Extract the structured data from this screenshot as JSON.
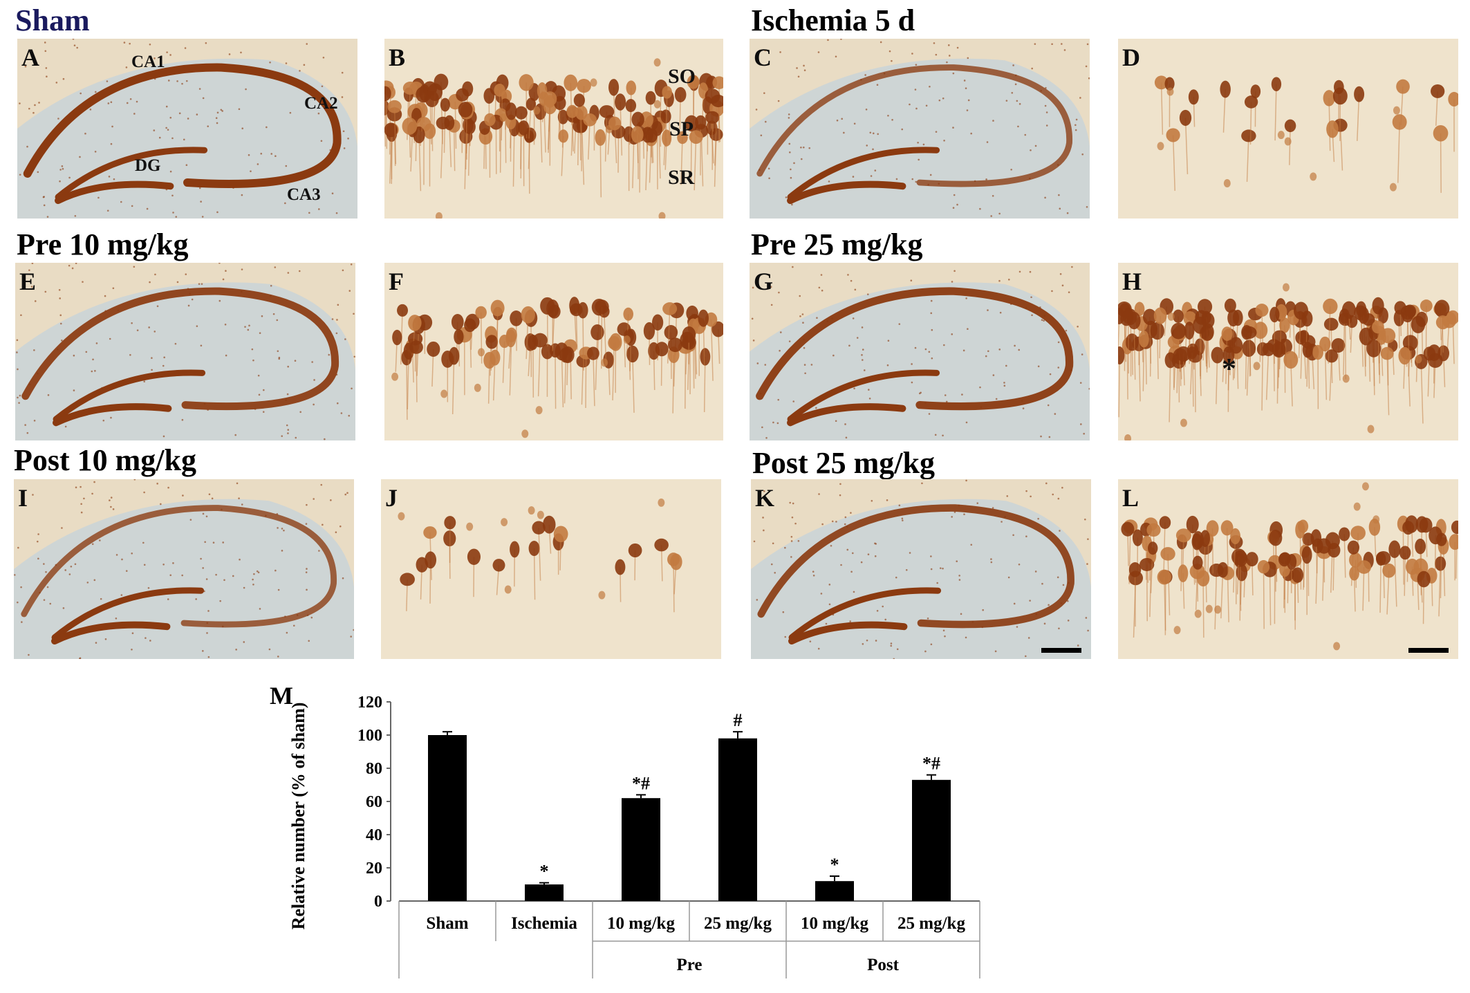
{
  "figure": {
    "titles": {
      "sham": "Sham",
      "ischemia": "Ischemia 5 d",
      "pre10": "Pre 10 mg/kg",
      "pre25": "Pre 25 mg/kg",
      "post10": "Post 10 mg/kg",
      "post25": "Post 25 mg/kg"
    },
    "title_color_sham": "#1a1a5e",
    "letters": {
      "A": "A",
      "B": "B",
      "C": "C",
      "D": "D",
      "E": "E",
      "F": "F",
      "G": "G",
      "H": "H",
      "I": "I",
      "J": "J",
      "K": "K",
      "L": "L",
      "M": "M"
    },
    "regions": {
      "ca1": "CA1",
      "ca2": "CA2",
      "ca3": "CA3",
      "dg": "DG"
    },
    "layers": {
      "so": "SO",
      "sp": "SP",
      "sr": "SR"
    },
    "asterisk": "*",
    "colors": {
      "stain": "#8b3a10",
      "stain_light": "#c27a40",
      "background": "#ecdcbf",
      "tissue_blue": "#c9d3d8"
    },
    "low_mag_density": {
      "A": 1.0,
      "C": 0.55,
      "E": 0.85,
      "G": 0.9,
      "I": 0.55,
      "K": 0.8
    },
    "high_mag_cells": {
      "B": 1.0,
      "D": 0.12,
      "F": 0.6,
      "H": 1.0,
      "J": 0.1,
      "L": 0.7
    }
  },
  "chart_data": {
    "type": "bar",
    "ylabel": "Relative number (% of sham)",
    "ylim": [
      0,
      120
    ],
    "yticks": [
      0,
      20,
      40,
      60,
      80,
      100,
      120
    ],
    "categories": [
      "Sham",
      "Ischemia",
      "10 mg/kg",
      "25 mg/kg",
      "10 mg/kg",
      "25 mg/kg"
    ],
    "groups": [
      {
        "label": "Pre",
        "span": [
          2,
          3
        ]
      },
      {
        "label": "Post",
        "span": [
          4,
          5
        ]
      }
    ],
    "values": [
      100,
      10,
      62,
      98,
      12,
      73
    ],
    "errors": [
      2,
      1,
      2,
      4,
      3,
      3
    ],
    "annotations": [
      "",
      "*",
      "*#",
      "#",
      "*",
      "*#"
    ],
    "bar_color": "#000000"
  }
}
